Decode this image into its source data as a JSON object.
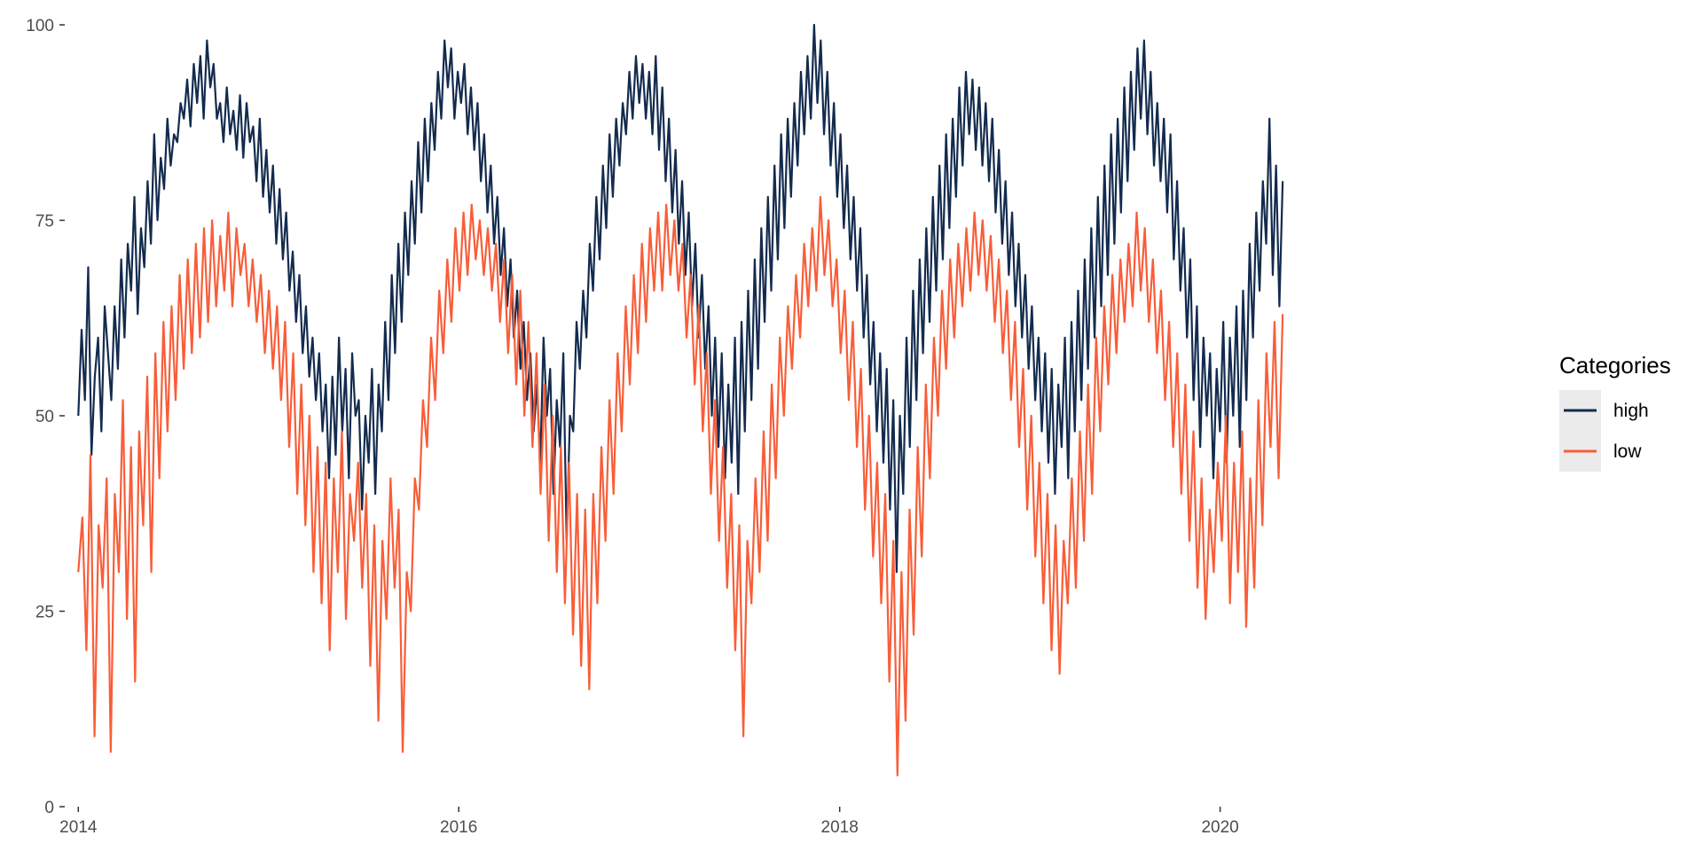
{
  "chart_data": {
    "type": "line",
    "title": "",
    "xlabel": "",
    "ylabel": "",
    "x_range": [
      "2014-01-01",
      "2020-04-30"
    ],
    "xlim": [
      "2013-12-06",
      "2021-07-01"
    ],
    "ylim": [
      0,
      100
    ],
    "x_ticks": [
      {
        "value": "2014-01-01",
        "label": "2014"
      },
      {
        "value": "2016-01-01",
        "label": "2016"
      },
      {
        "value": "2018-01-01",
        "label": "2018"
      },
      {
        "value": "2020-01-01",
        "label": "2020"
      }
    ],
    "y_ticks": [
      {
        "value": 0,
        "label": "0"
      },
      {
        "value": 25,
        "label": "25"
      },
      {
        "value": 50,
        "label": "50"
      },
      {
        "value": 75,
        "label": "75"
      },
      {
        "value": 100,
        "label": "100"
      }
    ],
    "grid": false,
    "legend": {
      "title": "Categories",
      "position": "right"
    },
    "series": [
      {
        "name": "high",
        "color": "#132b4e",
        "sampling": "weekly",
        "values": [
          50,
          61,
          52,
          69,
          45,
          55,
          60,
          48,
          64,
          58,
          52,
          64,
          56,
          70,
          60,
          72,
          66,
          78,
          63,
          74,
          69,
          80,
          72,
          86,
          75,
          83,
          79,
          88,
          82,
          86,
          85,
          90,
          88,
          93,
          87,
          95,
          90,
          96,
          88,
          98,
          92,
          95,
          88,
          90,
          85,
          92,
          86,
          89,
          84,
          91,
          83,
          90,
          85,
          87,
          80,
          88,
          78,
          84,
          76,
          82,
          72,
          79,
          70,
          76,
          66,
          71,
          62,
          68,
          58,
          64,
          55,
          60,
          52,
          58,
          48,
          54,
          42,
          55,
          45,
          60,
          48,
          56,
          42,
          58,
          50,
          52,
          38,
          50,
          44,
          56,
          40,
          54,
          48,
          62,
          52,
          68,
          58,
          72,
          62,
          76,
          68,
          80,
          72,
          85,
          76,
          88,
          80,
          90,
          84,
          94,
          88,
          98,
          92,
          97,
          88,
          94,
          90,
          95,
          86,
          92,
          84,
          90,
          80,
          86,
          76,
          82,
          72,
          78,
          68,
          74,
          64,
          70,
          60,
          66,
          56,
          62,
          52,
          58,
          48,
          54,
          44,
          60,
          50,
          56,
          40,
          52,
          46,
          58,
          34,
          50,
          48,
          62,
          56,
          66,
          60,
          72,
          66,
          78,
          70,
          82,
          74,
          86,
          78,
          88,
          82,
          90,
          86,
          94,
          88,
          96,
          90,
          95,
          88,
          94,
          86,
          96,
          84,
          92,
          80,
          88,
          76,
          84,
          72,
          80,
          68,
          76,
          64,
          72,
          60,
          68,
          56,
          64,
          50,
          60,
          46,
          58,
          42,
          54,
          44,
          60,
          40,
          62,
          48,
          66,
          52,
          70,
          56,
          74,
          62,
          78,
          66,
          82,
          70,
          86,
          74,
          88,
          78,
          90,
          82,
          94,
          86,
          96,
          88,
          100,
          90,
          98,
          86,
          94,
          82,
          90,
          78,
          86,
          74,
          82,
          70,
          78,
          66,
          74,
          60,
          68,
          54,
          62,
          48,
          58,
          44,
          56,
          38,
          52,
          30,
          50,
          40,
          60,
          46,
          66,
          52,
          70,
          58,
          74,
          62,
          78,
          66,
          82,
          70,
          86,
          74,
          88,
          78,
          92,
          82,
          94,
          86,
          93,
          84,
          92,
          82,
          90,
          80,
          88,
          76,
          84,
          72,
          80,
          68,
          76,
          64,
          72,
          60,
          68,
          56,
          64,
          52,
          60,
          48,
          58,
          44,
          56,
          40,
          54,
          46,
          60,
          42,
          62,
          48,
          66,
          52,
          70,
          56,
          74,
          60,
          78,
          64,
          82,
          68,
          86,
          72,
          88,
          76,
          92,
          80,
          94,
          84,
          97,
          88,
          98,
          86,
          94,
          82,
          90,
          80,
          88,
          76,
          86,
          70,
          80,
          66,
          74,
          60,
          70,
          52,
          64,
          46,
          60,
          50,
          58,
          42,
          56,
          48,
          62,
          44,
          60,
          50,
          64,
          46,
          66,
          52,
          72,
          60,
          76,
          66,
          80,
          72,
          88,
          68,
          82,
          64,
          80
        ]
      },
      {
        "name": "low",
        "color": "#f95d38",
        "sampling": "weekly",
        "values": [
          30,
          37,
          20,
          45,
          9,
          36,
          28,
          42,
          7,
          40,
          30,
          52,
          24,
          46,
          16,
          48,
          36,
          55,
          30,
          58,
          42,
          62,
          48,
          64,
          52,
          68,
          56,
          70,
          58,
          72,
          60,
          74,
          62,
          75,
          64,
          73,
          66,
          76,
          64,
          74,
          68,
          72,
          64,
          70,
          62,
          68,
          58,
          66,
          56,
          64,
          52,
          62,
          46,
          58,
          40,
          54,
          36,
          50,
          30,
          46,
          26,
          44,
          20,
          42,
          30,
          48,
          24,
          40,
          34,
          44,
          28,
          40,
          18,
          36,
          11,
          34,
          24,
          42,
          28,
          38,
          7,
          30,
          25,
          42,
          38,
          52,
          46,
          60,
          52,
          66,
          58,
          70,
          62,
          74,
          66,
          76,
          68,
          77,
          70,
          75,
          68,
          74,
          66,
          72,
          62,
          70,
          58,
          68,
          54,
          66,
          50,
          62,
          46,
          58,
          40,
          54,
          34,
          50,
          30,
          46,
          26,
          44,
          22,
          40,
          18,
          38,
          15,
          40,
          26,
          46,
          34,
          52,
          40,
          58,
          48,
          64,
          54,
          68,
          58,
          72,
          62,
          74,
          66,
          76,
          66,
          77,
          68,
          75,
          66,
          72,
          60,
          68,
          54,
          64,
          48,
          58,
          40,
          52,
          34,
          46,
          28,
          40,
          20,
          36,
          9,
          34,
          26,
          42,
          30,
          48,
          34,
          54,
          42,
          60,
          50,
          64,
          56,
          68,
          60,
          72,
          64,
          74,
          66,
          78,
          68,
          75,
          64,
          70,
          58,
          66,
          52,
          62,
          46,
          56,
          38,
          50,
          32,
          44,
          26,
          40,
          16,
          34,
          4,
          30,
          11,
          38,
          22,
          46,
          32,
          54,
          42,
          60,
          50,
          66,
          56,
          70,
          60,
          72,
          64,
          74,
          66,
          76,
          68,
          75,
          66,
          73,
          62,
          70,
          58,
          66,
          52,
          62,
          46,
          56,
          38,
          50,
          32,
          44,
          26,
          40,
          20,
          36,
          17,
          34,
          26,
          42,
          28,
          48,
          34,
          54,
          40,
          60,
          48,
          64,
          54,
          68,
          58,
          70,
          62,
          72,
          64,
          76,
          66,
          74,
          62,
          70,
          58,
          66,
          52,
          62,
          46,
          58,
          40,
          54,
          34,
          48,
          28,
          42,
          24,
          38,
          30,
          44,
          34,
          50,
          26,
          44,
          30,
          48,
          23,
          42,
          28,
          52,
          36,
          58,
          46,
          62,
          42,
          63
        ]
      }
    ]
  }
}
